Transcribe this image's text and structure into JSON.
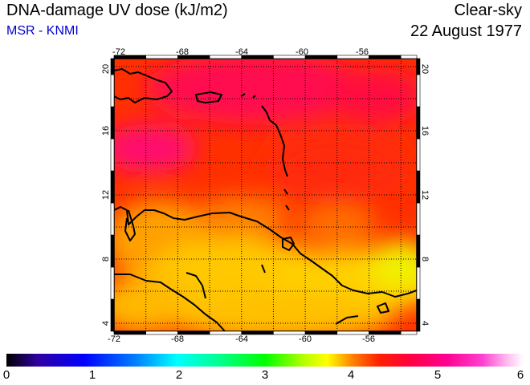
{
  "header": {
    "title": "DNA-damage UV dose (kJ/m2)",
    "subtitle": "MSR - KNMI",
    "condition": "Clear-sky",
    "date": "22 August 1977"
  },
  "map": {
    "lon_range": [
      -72,
      -53
    ],
    "lat_range": [
      3.5,
      20.5
    ],
    "lon_ticks": [
      "-72",
      "-68",
      "-64",
      "-60",
      "-56"
    ],
    "lat_ticks": [
      "4",
      "8",
      "12",
      "16",
      "20"
    ]
  },
  "colorbar": {
    "labels": [
      "0",
      "1",
      "2",
      "3",
      "4",
      "5",
      "6"
    ],
    "range": [
      0,
      6
    ]
  }
}
